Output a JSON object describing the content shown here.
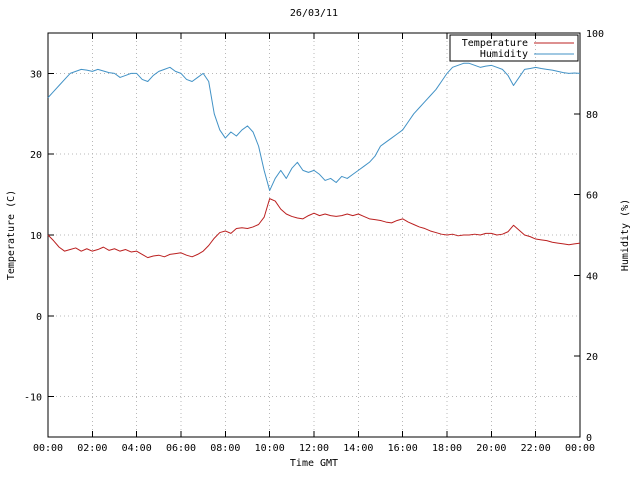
{
  "page": {
    "title": "26/03/11"
  },
  "colors": {
    "background": "#ffffff",
    "border": "#000000",
    "grid": "#b8b8b8",
    "text": "#000000",
    "temperature": "#bb2020",
    "humidity": "#4292c6"
  },
  "chart_data": {
    "type": "line",
    "title": "26/03/11",
    "xlabel": "Time GMT",
    "ylabel_left": "Temperature (C)",
    "ylabel_right": "Humidity (%)",
    "grid": true,
    "legend_position": "top-right-inside-boxed",
    "x_range_hours": [
      0,
      24
    ],
    "x_tick_step_hours": 2,
    "x_tick_labels": [
      "00:00",
      "02:00",
      "04:00",
      "06:00",
      "08:00",
      "10:00",
      "12:00",
      "14:00",
      "16:00",
      "18:00",
      "20:00",
      "22:00",
      "00:00"
    ],
    "y_left_range": [
      -15,
      35
    ],
    "y_left_ticks": [
      -10,
      0,
      10,
      20,
      30
    ],
    "y_right_range": [
      0,
      100
    ],
    "y_right_ticks": [
      0,
      20,
      40,
      60,
      80,
      100
    ],
    "series": [
      {
        "name": "Temperature",
        "axis": "left",
        "color": "#bb2020",
        "x_step_hours": 0.25,
        "values": [
          10.0,
          9.3,
          8.5,
          8.0,
          8.2,
          8.4,
          8.0,
          8.3,
          8.0,
          8.2,
          8.5,
          8.1,
          8.3,
          8.0,
          8.2,
          7.9,
          8.0,
          7.6,
          7.2,
          7.4,
          7.5,
          7.3,
          7.6,
          7.7,
          7.8,
          7.5,
          7.3,
          7.6,
          8.0,
          8.7,
          9.6,
          10.3,
          10.5,
          10.2,
          10.8,
          10.9,
          10.8,
          11.0,
          11.3,
          12.2,
          14.5,
          14.2,
          13.2,
          12.6,
          12.3,
          12.1,
          12.0,
          12.4,
          12.7,
          12.4,
          12.6,
          12.4,
          12.3,
          12.4,
          12.6,
          12.4,
          12.6,
          12.3,
          12.0,
          11.9,
          11.8,
          11.6,
          11.5,
          11.8,
          12.0,
          11.6,
          11.3,
          11.0,
          10.8,
          10.5,
          10.3,
          10.1,
          10.0,
          10.1,
          9.9,
          10.0,
          10.0,
          10.1,
          10.0,
          10.2,
          10.2,
          10.0,
          10.1,
          10.4,
          11.2,
          10.6,
          10.0,
          9.8,
          9.5,
          9.4,
          9.3,
          9.1,
          9.0,
          8.9,
          8.8,
          8.9,
          9.0
        ]
      },
      {
        "name": "Humidity",
        "axis": "right",
        "color": "#4292c6",
        "x_step_hours": 0.25,
        "values": [
          84,
          85.5,
          87,
          88.5,
          90,
          90.5,
          91,
          90.8,
          90.5,
          91,
          90.6,
          90.2,
          90,
          89,
          89.5,
          90,
          90,
          88.5,
          88,
          89.5,
          90.5,
          91,
          91.5,
          90.5,
          90,
          88.5,
          88,
          89,
          90,
          88,
          80,
          76,
          74,
          75.5,
          74.5,
          76,
          77,
          75.5,
          72,
          66,
          61,
          64,
          66,
          64,
          66.5,
          68,
          66,
          65.5,
          66,
          65,
          63.5,
          64,
          63,
          64.5,
          64,
          65,
          66,
          67,
          68,
          69.5,
          72,
          73,
          74,
          75,
          76,
          78,
          80,
          81.5,
          83,
          84.5,
          86,
          88,
          90,
          91.5,
          92,
          92.5,
          92.5,
          92,
          91.5,
          91.8,
          92,
          91.5,
          91,
          89.5,
          87,
          89,
          91,
          91.2,
          91.5,
          91.2,
          91,
          90.8,
          90.5,
          90.2,
          90,
          90.1,
          90
        ]
      }
    ]
  }
}
